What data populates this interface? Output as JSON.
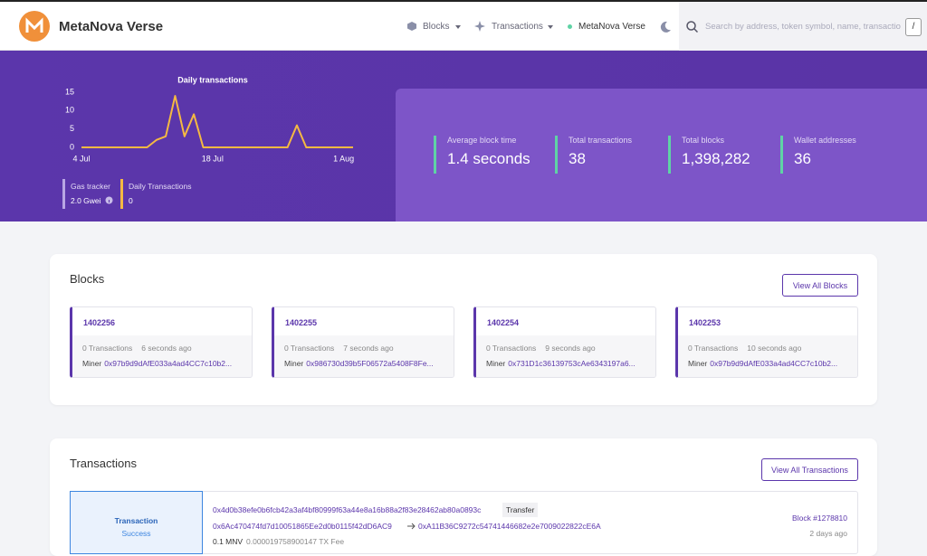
{
  "header": {
    "brand": "MetaNova Verse",
    "nav": [
      "Blocks",
      "Transactions"
    ],
    "network": "MetaNova Verse",
    "search_placeholder": "Search by address, token symbol, name, transactio",
    "search_key": "/"
  },
  "chart_data": {
    "type": "line",
    "title": "Daily transactions",
    "categories": [
      "4 Jul",
      null,
      null,
      null,
      null,
      null,
      null,
      null,
      null,
      null,
      null,
      null,
      null,
      null,
      "18 Jul",
      null,
      null,
      null,
      null,
      null,
      null,
      null,
      null,
      null,
      null,
      null,
      null,
      null,
      "1 Aug",
      null
    ],
    "series": [
      {
        "name": "Daily transactions",
        "color": "#f5b942",
        "values": [
          0,
          0,
          0,
          0,
          0,
          0,
          0,
          0,
          2,
          3,
          14,
          3,
          9,
          0,
          0,
          0,
          0,
          0,
          0,
          0,
          0,
          0,
          0,
          6,
          0,
          0,
          0,
          0,
          0,
          0
        ]
      }
    ],
    "ylim": [
      0,
      15
    ],
    "yticks": [
      0,
      5,
      10,
      15
    ],
    "grid": false
  },
  "banner": {
    "gas_label": "Gas tracker",
    "gas_value": "2.0 Gwei",
    "daily_label": "Daily Transactions",
    "daily_value": "0"
  },
  "stats": [
    {
      "label": "Average block time",
      "value": "1.4 seconds"
    },
    {
      "label": "Total transactions",
      "value": "38"
    },
    {
      "label": "Total blocks",
      "value": "1,398,282"
    },
    {
      "label": "Wallet addresses",
      "value": "36"
    }
  ],
  "blocks": {
    "title": "Blocks",
    "button": "View All Blocks",
    "items": [
      {
        "number": "1402256",
        "txs": "0 Transactions",
        "age": "6 seconds ago",
        "miner_label": "Miner",
        "miner": "0x97b9d9dAfE033a4ad4CC7c10b2..."
      },
      {
        "number": "1402255",
        "txs": "0 Transactions",
        "age": "7 seconds ago",
        "miner_label": "Miner",
        "miner": "0x986730d39b5F06572a5408F8Fe..."
      },
      {
        "number": "1402254",
        "txs": "0 Transactions",
        "age": "9 seconds ago",
        "miner_label": "Miner",
        "miner": "0x731D1c36139753cAe6343197a6..."
      },
      {
        "number": "1402253",
        "txs": "0 Transactions",
        "age": "10 seconds ago",
        "miner_label": "Miner",
        "miner": "0x97b9d9dAfE033a4ad4CC7c10b2..."
      }
    ]
  },
  "transactions": {
    "title": "Transactions",
    "button": "View All Transactions",
    "items": [
      {
        "kind": "Transaction",
        "status": "Success",
        "hash": "0x4d0b38efe0b6fcb42a3af4bf80999f63a44e8a16b88a2f83e28462ab80a0893c",
        "method": "Transfer",
        "from": "0x6Ac470474fd7d10051865Ee2d0b0115f42dD6AC9",
        "to": "0xA11B36C9272c54741446682e2e7009022822cE6A",
        "amount": "0.1 MNV",
        "fee": "0.000019758900147 TX Fee",
        "block": "Block #1278810",
        "age": "2 days ago"
      }
    ]
  }
}
